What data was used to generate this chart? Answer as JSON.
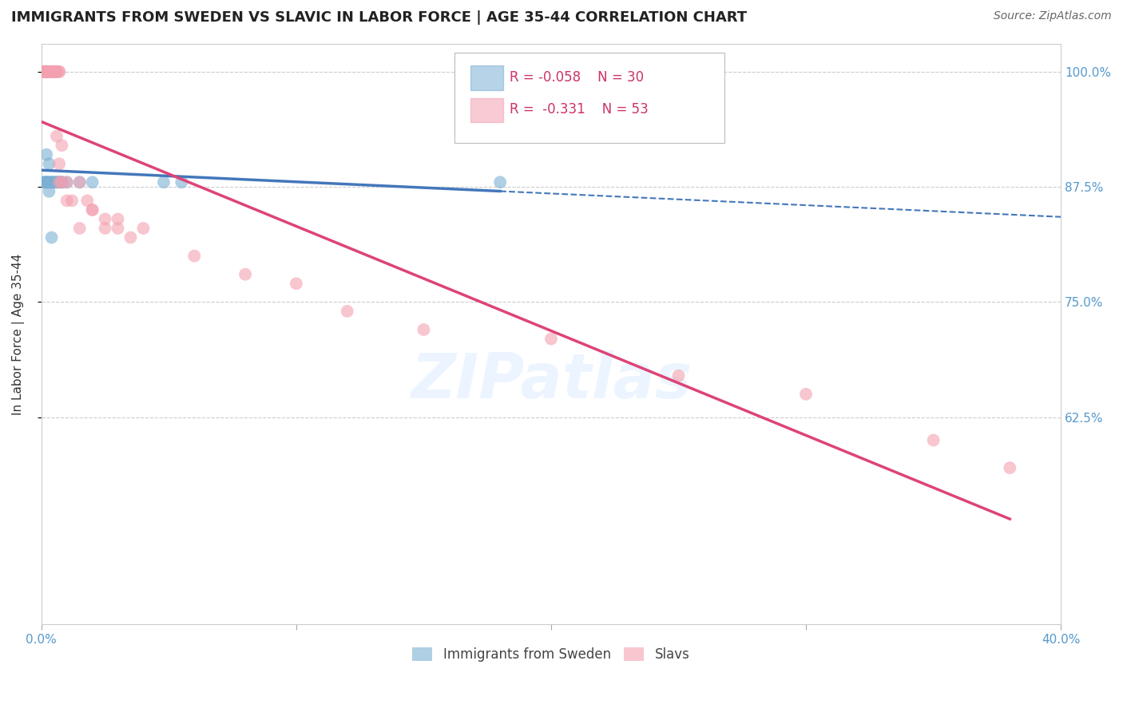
{
  "title": "IMMIGRANTS FROM SWEDEN VS SLAVIC IN LABOR FORCE | AGE 35-44 CORRELATION CHART",
  "source": "Source: ZipAtlas.com",
  "ylabel": "In Labor Force | Age 35-44",
  "xlim": [
    0.0,
    0.4
  ],
  "ylim": [
    0.4,
    1.03
  ],
  "yticks": [
    0.625,
    0.75,
    0.875,
    1.0
  ],
  "ytick_labels": [
    "62.5%",
    "75.0%",
    "87.5%",
    "100.0%"
  ],
  "xticks": [
    0.0,
    0.1,
    0.2,
    0.3,
    0.4
  ],
  "xtick_labels": [
    "0.0%",
    "",
    "",
    "",
    "40.0%"
  ],
  "legend_R_sweden": "-0.058",
  "legend_N_sweden": "30",
  "legend_R_slavic": "-0.331",
  "legend_N_slavic": "53",
  "sweden_color": "#7BAFD4",
  "slavic_color": "#F4A0B0",
  "regression_sweden_color": "#4477BB",
  "regression_slavic_color": "#DD4477",
  "background_color": "#ffffff",
  "sweden_scatter_x": [
    0.001,
    0.001,
    0.002,
    0.002,
    0.002,
    0.002,
    0.003,
    0.003,
    0.003,
    0.003,
    0.004,
    0.004,
    0.004,
    0.005,
    0.005,
    0.006,
    0.006,
    0.007,
    0.007,
    0.008,
    0.008,
    0.01,
    0.015,
    0.02,
    0.048,
    0.055,
    0.18,
    0.001,
    0.002,
    0.003
  ],
  "sweden_scatter_y": [
    0.88,
    0.88,
    0.88,
    0.88,
    0.88,
    0.91,
    0.88,
    0.88,
    0.9,
    0.87,
    0.88,
    0.88,
    0.82,
    0.88,
    0.88,
    0.88,
    0.88,
    0.88,
    0.88,
    0.88,
    0.88,
    0.88,
    0.88,
    0.88,
    0.88,
    0.88,
    0.88,
    1.0,
    1.0,
    1.0
  ],
  "slavic_scatter_x": [
    0.001,
    0.001,
    0.001,
    0.001,
    0.002,
    0.002,
    0.002,
    0.002,
    0.002,
    0.003,
    0.003,
    0.003,
    0.003,
    0.004,
    0.004,
    0.004,
    0.005,
    0.005,
    0.005,
    0.006,
    0.006,
    0.006,
    0.006,
    0.007,
    0.007,
    0.007,
    0.007,
    0.008,
    0.008,
    0.01,
    0.01,
    0.012,
    0.015,
    0.015,
    0.018,
    0.02,
    0.02,
    0.025,
    0.025,
    0.03,
    0.03,
    0.035,
    0.04,
    0.06,
    0.08,
    0.1,
    0.12,
    0.15,
    0.2,
    0.25,
    0.3,
    0.35,
    0.38
  ],
  "slavic_scatter_y": [
    1.0,
    1.0,
    1.0,
    1.0,
    1.0,
    1.0,
    1.0,
    1.0,
    1.0,
    1.0,
    1.0,
    1.0,
    1.0,
    1.0,
    1.0,
    1.0,
    1.0,
    1.0,
    1.0,
    1.0,
    1.0,
    1.0,
    0.93,
    1.0,
    1.0,
    0.9,
    0.88,
    0.92,
    0.88,
    0.86,
    0.88,
    0.86,
    0.88,
    0.83,
    0.86,
    0.85,
    0.85,
    0.83,
    0.84,
    0.83,
    0.84,
    0.82,
    0.83,
    0.8,
    0.78,
    0.77,
    0.74,
    0.72,
    0.71,
    0.67,
    0.65,
    0.6,
    0.57
  ],
  "watermark": "ZIPatlas",
  "title_fontsize": 13,
  "axis_label_fontsize": 11,
  "tick_fontsize": 11
}
